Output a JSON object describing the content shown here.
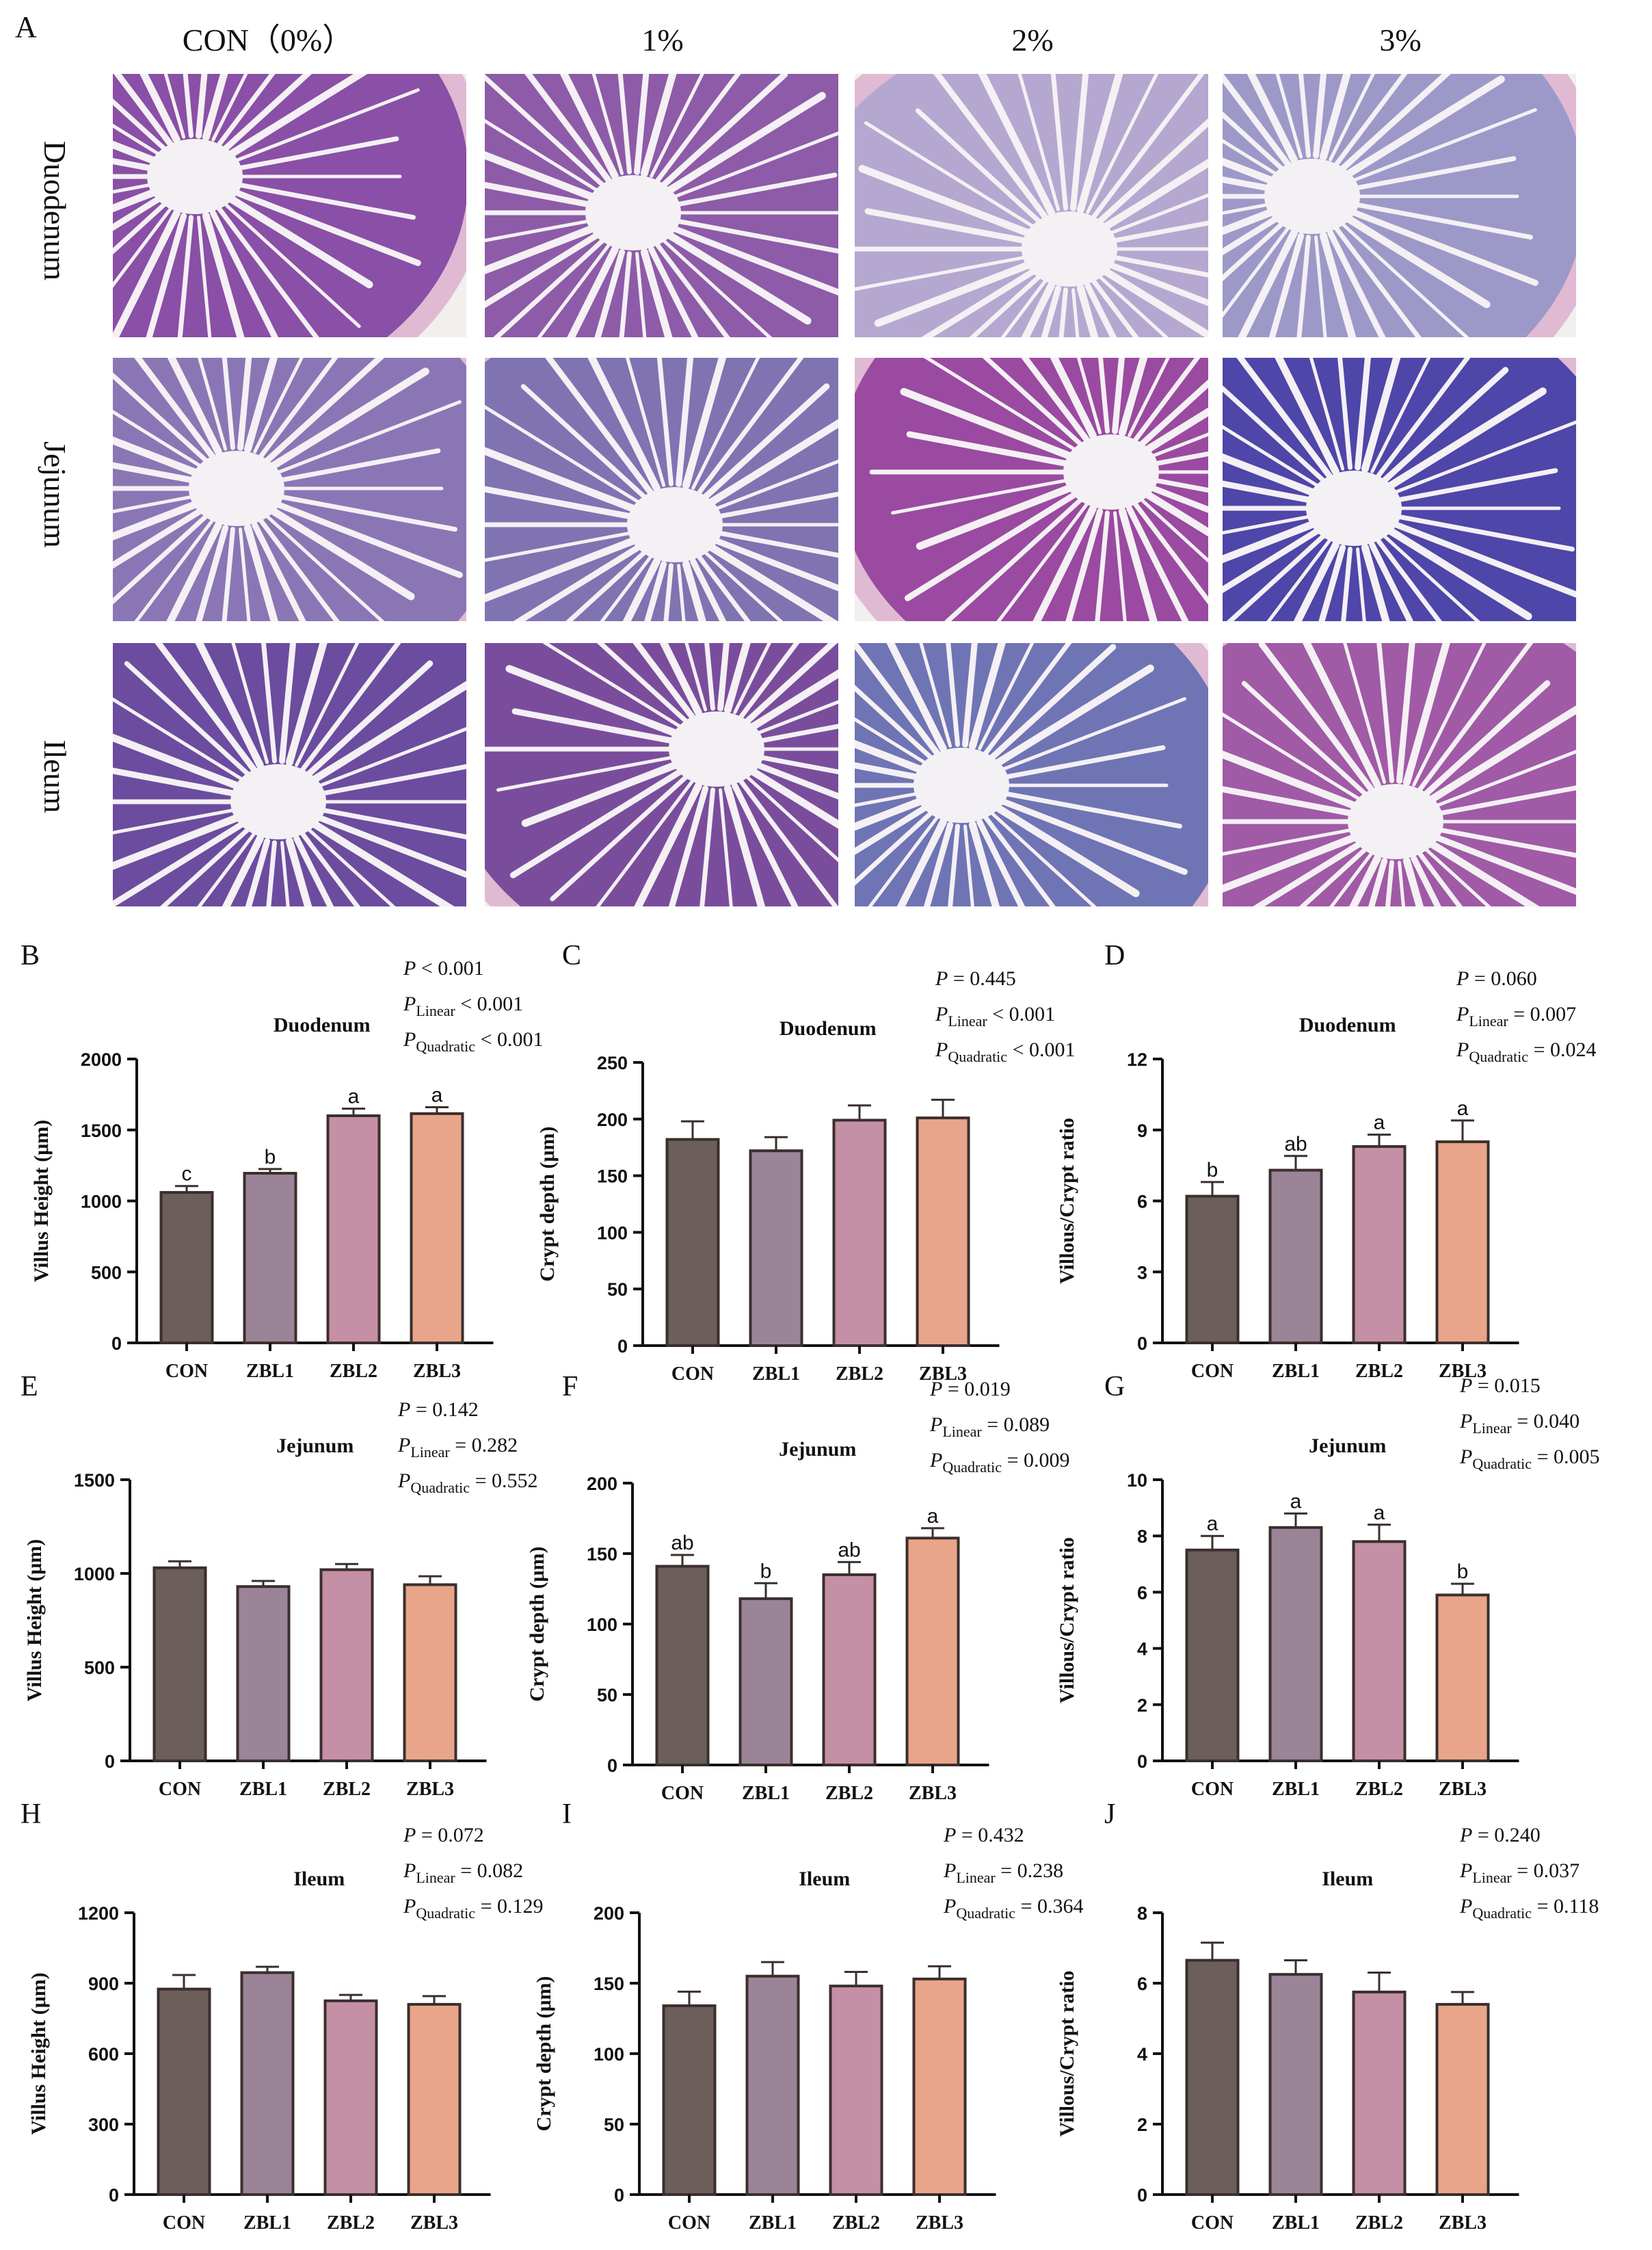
{
  "panel_A": {
    "letter": "A",
    "columns": [
      "CON（0%）",
      "1%",
      "2%",
      "3%"
    ],
    "rows": [
      "Duodenum",
      "Jejunum",
      "Ileum"
    ],
    "stain_colors": {
      "Duodenum": [
        "#8a4fa6",
        "#8d5ba8",
        "#b4a8d0",
        "#9c99c8"
      ],
      "Jejunum": [
        "#8a76b4",
        "#7f73b2",
        "#9a4aa0",
        "#4e46a8"
      ],
      "Ileum": [
        "#6b4c9e",
        "#7a4d9c",
        "#6f74b4",
        "#a05aa6"
      ]
    }
  },
  "chart_data": [
    {
      "type": "bar",
      "letter": "B",
      "title": "Duodenum",
      "xlabel": "",
      "ylabel": "Villus Height (μm)",
      "categories": [
        "CON",
        "ZBL1",
        "ZBL2",
        "ZBL3"
      ],
      "values": [
        1060,
        1195,
        1600,
        1615
      ],
      "errors": [
        45,
        30,
        50,
        45
      ],
      "letters": [
        "c",
        "b",
        "a",
        "a"
      ],
      "ylim": [
        0,
        2000
      ],
      "yticks": [
        "0",
        "500",
        "1000",
        "1500",
        "2000"
      ],
      "stats": [
        [
          "P",
          "",
          "< 0.001"
        ],
        [
          "P",
          "Linear",
          "< 0.001"
        ],
        [
          "P",
          "Quadratic",
          "< 0.001"
        ]
      ]
    },
    {
      "type": "bar",
      "letter": "C",
      "title": "Duodenum",
      "xlabel": "",
      "ylabel": "Crypt depth (μm)",
      "categories": [
        "CON",
        "ZBL1",
        "ZBL2",
        "ZBL3"
      ],
      "values": [
        182,
        172,
        199,
        201
      ],
      "errors": [
        16,
        12,
        13,
        16
      ],
      "letters": [
        "",
        "",
        "",
        ""
      ],
      "ylim": [
        0,
        250
      ],
      "yticks": [
        "0",
        "50",
        "100",
        "150",
        "200",
        "250"
      ],
      "stats": [
        [
          "P",
          "",
          "= 0.445"
        ],
        [
          "P",
          "Linear",
          "< 0.001"
        ],
        [
          "P",
          "Quadratic",
          "< 0.001"
        ]
      ]
    },
    {
      "type": "bar",
      "letter": "D",
      "title": "Duodenum",
      "xlabel": "",
      "ylabel": "Villous/Crypt ratio",
      "categories": [
        "CON",
        "ZBL1",
        "ZBL2",
        "ZBL3"
      ],
      "values": [
        6.2,
        7.3,
        8.3,
        8.5
      ],
      "errors": [
        0.6,
        0.6,
        0.5,
        0.9
      ],
      "letters": [
        "b",
        "ab",
        "a",
        "a"
      ],
      "ylim": [
        0,
        12
      ],
      "yticks": [
        "0",
        "3",
        "6",
        "9",
        "12"
      ],
      "stats": [
        [
          "P",
          "",
          "= 0.060"
        ],
        [
          "P",
          "Linear",
          "= 0.007"
        ],
        [
          "P",
          "Quadratic",
          "= 0.024"
        ]
      ]
    },
    {
      "type": "bar",
      "letter": "E",
      "title": "Jejunum",
      "xlabel": "",
      "ylabel": "Villus Height (μm)",
      "categories": [
        "CON",
        "ZBL1",
        "ZBL2",
        "ZBL3"
      ],
      "values": [
        1030,
        930,
        1020,
        940
      ],
      "errors": [
        35,
        30,
        30,
        45
      ],
      "letters": [
        "",
        "",
        "",
        ""
      ],
      "ylim": [
        0,
        1500
      ],
      "yticks": [
        "0",
        "500",
        "1000",
        "1500"
      ],
      "stats": [
        [
          "P",
          "",
          "= 0.142"
        ],
        [
          "P",
          "Linear",
          "= 0.282"
        ],
        [
          "P",
          "Quadratic",
          "= 0.552"
        ]
      ]
    },
    {
      "type": "bar",
      "letter": "F",
      "title": "Jejunum",
      "xlabel": "",
      "ylabel": "Crypt depth (μm)",
      "categories": [
        "CON",
        "ZBL1",
        "ZBL2",
        "ZBL3"
      ],
      "values": [
        141,
        118,
        135,
        161
      ],
      "errors": [
        8,
        11,
        9,
        7
      ],
      "letters": [
        "ab",
        "b",
        "ab",
        "a"
      ],
      "ylim": [
        0,
        200
      ],
      "yticks": [
        "0",
        "50",
        "100",
        "150",
        "200"
      ],
      "stats": [
        [
          "P",
          "",
          "= 0.019"
        ],
        [
          "P",
          "Linear",
          "= 0.089"
        ],
        [
          "P",
          "Quadratic",
          "= 0.009"
        ]
      ]
    },
    {
      "type": "bar",
      "letter": "G",
      "title": "Jejunum",
      "xlabel": "",
      "ylabel": "Villous/Crypt ratio",
      "categories": [
        "CON",
        "ZBL1",
        "ZBL2",
        "ZBL3"
      ],
      "values": [
        7.5,
        8.3,
        7.8,
        5.9
      ],
      "errors": [
        0.5,
        0.5,
        0.6,
        0.4
      ],
      "letters": [
        "a",
        "a",
        "a",
        "b"
      ],
      "ylim": [
        0,
        10
      ],
      "yticks": [
        "0",
        "2",
        "4",
        "6",
        "8",
        "10"
      ],
      "stats": [
        [
          "P",
          "",
          "= 0.015"
        ],
        [
          "P",
          "Linear",
          "= 0.040"
        ],
        [
          "P",
          "Quadratic",
          "= 0.005"
        ]
      ]
    },
    {
      "type": "bar",
      "letter": "H",
      "title": "Ileum",
      "xlabel": "",
      "ylabel": "Villus Height (μm)",
      "categories": [
        "CON",
        "ZBL1",
        "ZBL2",
        "ZBL3"
      ],
      "values": [
        875,
        945,
        825,
        810
      ],
      "errors": [
        60,
        25,
        25,
        35
      ],
      "letters": [
        "",
        "",
        "",
        ""
      ],
      "ylim": [
        0,
        1200
      ],
      "yticks": [
        "0",
        "300",
        "600",
        "900",
        "1200"
      ],
      "stats": [
        [
          "P",
          "",
          "= 0.072"
        ],
        [
          "P",
          "Linear",
          "= 0.082"
        ],
        [
          "P",
          "Quadratic",
          "= 0.129"
        ]
      ]
    },
    {
      "type": "bar",
      "letter": "I",
      "title": "Ileum",
      "xlabel": "",
      "ylabel": "Crypt depth (μm)",
      "categories": [
        "CON",
        "ZBL1",
        "ZBL2",
        "ZBL3"
      ],
      "values": [
        134,
        155,
        148,
        153
      ],
      "errors": [
        10,
        10,
        10,
        9
      ],
      "letters": [
        "",
        "",
        "",
        ""
      ],
      "ylim": [
        0,
        200
      ],
      "yticks": [
        "0",
        "50",
        "100",
        "150",
        "200"
      ],
      "stats": [
        [
          "P",
          "",
          "= 0.432"
        ],
        [
          "P",
          "Linear",
          "= 0.238"
        ],
        [
          "P",
          "Quadratic",
          "= 0.364"
        ]
      ]
    },
    {
      "type": "bar",
      "letter": "J",
      "title": "Ileum",
      "xlabel": "",
      "ylabel": "Villous/Crypt ratio",
      "categories": [
        "CON",
        "ZBL1",
        "ZBL2",
        "ZBL3"
      ],
      "values": [
        6.65,
        6.25,
        5.75,
        5.4
      ],
      "errors": [
        0.5,
        0.4,
        0.55,
        0.35
      ],
      "letters": [
        "",
        "",
        "",
        ""
      ],
      "ylim": [
        0,
        8
      ],
      "yticks": [
        "0",
        "2",
        "4",
        "6",
        "8"
      ],
      "stats": [
        [
          "P",
          "",
          "= 0.240"
        ],
        [
          "P",
          "Linear",
          "= 0.037"
        ],
        [
          "P",
          "Quadratic",
          "= 0.118"
        ]
      ]
    }
  ],
  "bar_colors": [
    "#6b5e5b",
    "#9b8497",
    "#c58fa5",
    "#e8a58a"
  ],
  "bar_edge": "#3a2f2d"
}
